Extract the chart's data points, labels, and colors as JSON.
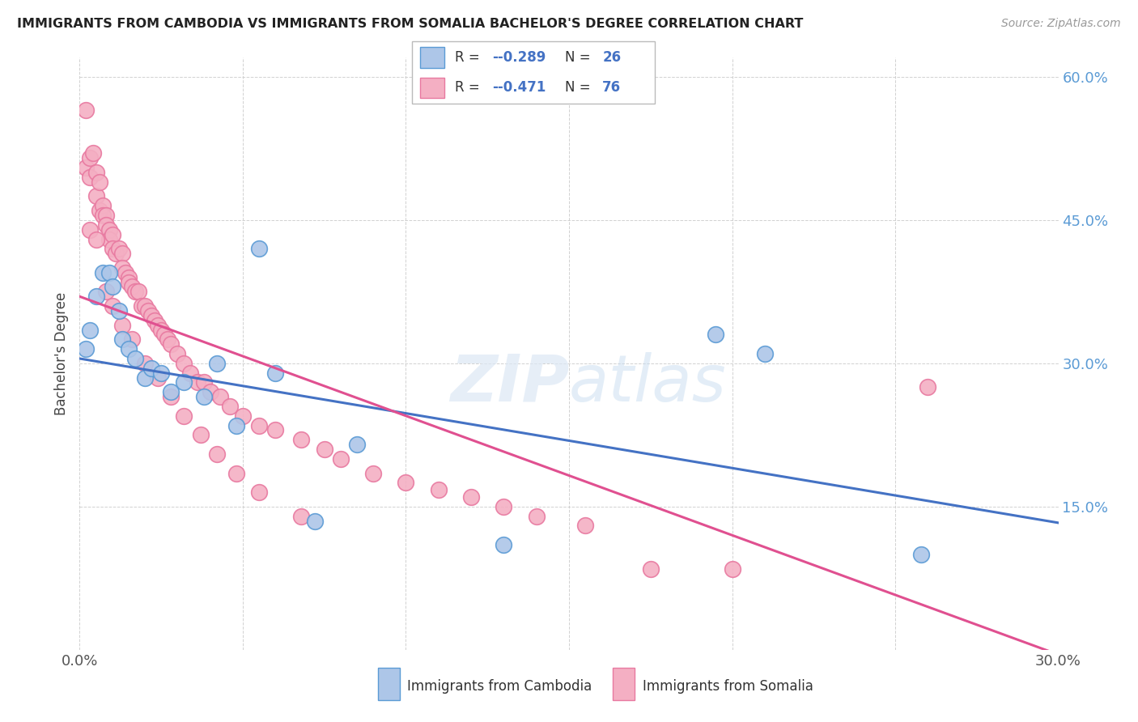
{
  "title": "IMMIGRANTS FROM CAMBODIA VS IMMIGRANTS FROM SOMALIA BACHELOR'S DEGREE CORRELATION CHART",
  "source": "Source: ZipAtlas.com",
  "ylabel": "Bachelor's Degree",
  "xlabel_cambodia": "Immigrants from Cambodia",
  "xlabel_somalia": "Immigrants from Somalia",
  "watermark": "ZIPatlas",
  "xlim": [
    0.0,
    0.3
  ],
  "ylim": [
    0.0,
    0.62
  ],
  "ytick_positions": [
    0.0,
    0.15,
    0.3,
    0.45,
    0.6
  ],
  "ytick_labels_right": [
    "",
    "15.0%",
    "30.0%",
    "45.0%",
    "60.0%"
  ],
  "xtick_positions": [
    0.0,
    0.05,
    0.1,
    0.15,
    0.2,
    0.25,
    0.3
  ],
  "xtick_labels": [
    "0.0%",
    "",
    "",
    "",
    "",
    "",
    "30.0%"
  ],
  "legend_r_cambodia": "-0.289",
  "legend_n_cambodia": "26",
  "legend_r_somalia": "-0.471",
  "legend_n_somalia": "76",
  "color_cambodia_fill": "#adc6e8",
  "color_somalia_fill": "#f4afc3",
  "color_cambodia_edge": "#5b9bd5",
  "color_somalia_edge": "#e879a0",
  "line_color_cambodia": "#4472c4",
  "line_color_somalia": "#e05090",
  "camb_line_x0": 0.0,
  "camb_line_x1": 0.3,
  "camb_line_y0": 0.305,
  "camb_line_y1": 0.133,
  "som_line_x0": 0.0,
  "som_line_x1": 0.3,
  "som_line_y0": 0.37,
  "som_line_y1": -0.005,
  "scatter_cambodia_x": [
    0.002,
    0.003,
    0.005,
    0.007,
    0.009,
    0.01,
    0.012,
    0.013,
    0.015,
    0.017,
    0.02,
    0.022,
    0.025,
    0.028,
    0.032,
    0.038,
    0.042,
    0.048,
    0.055,
    0.06,
    0.072,
    0.085,
    0.13,
    0.195,
    0.21,
    0.258
  ],
  "scatter_cambodia_y": [
    0.315,
    0.335,
    0.37,
    0.395,
    0.395,
    0.38,
    0.355,
    0.325,
    0.315,
    0.305,
    0.285,
    0.295,
    0.29,
    0.27,
    0.28,
    0.265,
    0.3,
    0.235,
    0.42,
    0.29,
    0.135,
    0.215,
    0.11,
    0.33,
    0.31,
    0.1
  ],
  "scatter_somalia_x": [
    0.002,
    0.002,
    0.003,
    0.003,
    0.004,
    0.005,
    0.005,
    0.006,
    0.006,
    0.007,
    0.007,
    0.008,
    0.008,
    0.009,
    0.009,
    0.01,
    0.01,
    0.011,
    0.012,
    0.013,
    0.013,
    0.014,
    0.015,
    0.015,
    0.016,
    0.017,
    0.018,
    0.019,
    0.02,
    0.021,
    0.022,
    0.023,
    0.024,
    0.025,
    0.026,
    0.027,
    0.028,
    0.03,
    0.032,
    0.034,
    0.036,
    0.038,
    0.04,
    0.043,
    0.046,
    0.05,
    0.055,
    0.06,
    0.068,
    0.075,
    0.08,
    0.09,
    0.1,
    0.11,
    0.12,
    0.13,
    0.14,
    0.155,
    0.175,
    0.2,
    0.003,
    0.005,
    0.008,
    0.01,
    0.013,
    0.016,
    0.02,
    0.024,
    0.028,
    0.032,
    0.037,
    0.042,
    0.048,
    0.055,
    0.068,
    0.26
  ],
  "scatter_somalia_y": [
    0.565,
    0.505,
    0.495,
    0.515,
    0.52,
    0.5,
    0.475,
    0.49,
    0.46,
    0.465,
    0.455,
    0.455,
    0.445,
    0.44,
    0.43,
    0.435,
    0.42,
    0.415,
    0.42,
    0.415,
    0.4,
    0.395,
    0.39,
    0.385,
    0.38,
    0.375,
    0.375,
    0.36,
    0.36,
    0.355,
    0.35,
    0.345,
    0.34,
    0.335,
    0.33,
    0.325,
    0.32,
    0.31,
    0.3,
    0.29,
    0.28,
    0.28,
    0.27,
    0.265,
    0.255,
    0.245,
    0.235,
    0.23,
    0.22,
    0.21,
    0.2,
    0.185,
    0.175,
    0.168,
    0.16,
    0.15,
    0.14,
    0.13,
    0.085,
    0.085,
    0.44,
    0.43,
    0.375,
    0.36,
    0.34,
    0.325,
    0.3,
    0.285,
    0.265,
    0.245,
    0.225,
    0.205,
    0.185,
    0.165,
    0.14,
    0.275
  ]
}
